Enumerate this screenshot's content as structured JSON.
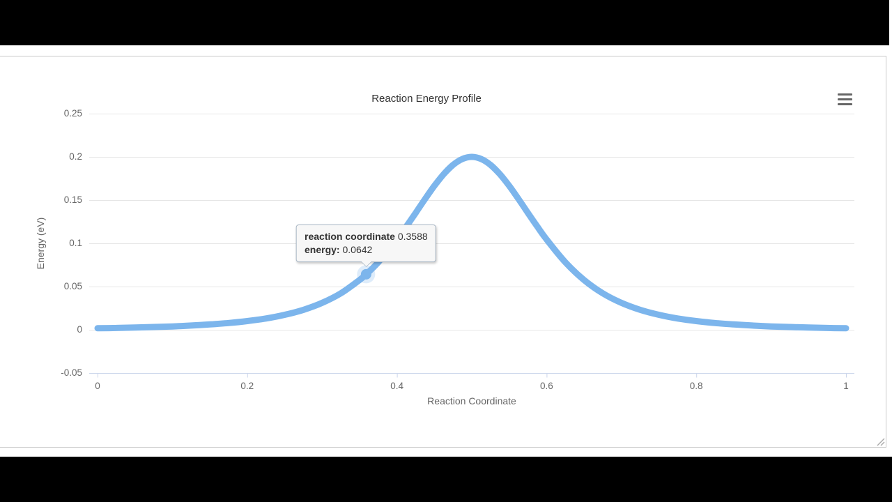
{
  "page": {
    "letterbox_color": "#000000",
    "background": "#ffffff"
  },
  "chart": {
    "title": "Reaction Energy Profile",
    "colors": {
      "series": "#7cb5ec",
      "grid": "#e6e6e6",
      "axis_line": "#ccd6eb",
      "labels": "#666666",
      "title": "#333333",
      "tooltip_bg": "#f7f7f7",
      "tooltip_border": "#a9b7c5",
      "menu_icon": "#666666",
      "letterbox": "#000000",
      "card_border": "#c9c9c9"
    },
    "context_menu_icon": "hamburger-icon",
    "resize_icon": "resize-grip-icon"
  },
  "tooltip": {
    "line1_label": "reaction coordinate",
    "line1_value": "0.3588",
    "line2_label": "energy:",
    "line2_value": "0.0642"
  },
  "chart_data": {
    "type": "line",
    "title": "Reaction Energy Profile",
    "xlabel": "Reaction Coordinate",
    "ylabel": "Energy (eV)",
    "xlim": [
      0,
      1
    ],
    "ylim": [
      -0.05,
      0.25
    ],
    "xticks": [
      0,
      0.2,
      0.4,
      0.6,
      0.8,
      1
    ],
    "xtick_labels": [
      "0",
      "0.2",
      "0.4",
      "0.6",
      "0.8",
      "1"
    ],
    "yticks": [
      -0.05,
      0,
      0.05,
      0.1,
      0.15,
      0.2,
      0.25
    ],
    "ytick_labels": [
      "-0.05",
      "0",
      "0.05",
      "0.1",
      "0.15",
      "0.2",
      "0.25"
    ],
    "grid": "horizontal-only",
    "legend": "none",
    "series": [
      {
        "name": "energy",
        "color": "#7cb5ec",
        "line_width": 9,
        "x": [
          0,
          0.025,
          0.05,
          0.075,
          0.1,
          0.125,
          0.15,
          0.175,
          0.2,
          0.225,
          0.25,
          0.275,
          0.3,
          0.325,
          0.35,
          0.3588,
          0.375,
          0.4,
          0.4125,
          0.425,
          0.4375,
          0.45,
          0.4625,
          0.475,
          0.4875,
          0.5,
          0.5125,
          0.525,
          0.5375,
          0.55,
          0.5625,
          0.575,
          0.5875,
          0.6,
          0.625,
          0.65,
          0.675,
          0.7,
          0.725,
          0.75,
          0.775,
          0.8,
          0.825,
          0.85,
          0.875,
          0.9,
          0.925,
          0.95,
          0.975,
          1
        ],
        "y": [
          0.0018,
          0.0021,
          0.0026,
          0.0032,
          0.0039,
          0.0049,
          0.0062,
          0.0078,
          0.0101,
          0.0131,
          0.0173,
          0.0231,
          0.0311,
          0.0422,
          0.0576,
          0.0642,
          0.0781,
          0.1044,
          0.1194,
          0.1352,
          0.1512,
          0.1665,
          0.18,
          0.1907,
          0.1976,
          0.2,
          0.1976,
          0.1907,
          0.18,
          0.1665,
          0.1512,
          0.1352,
          0.1194,
          0.1044,
          0.0781,
          0.0576,
          0.0422,
          0.0311,
          0.0231,
          0.0173,
          0.0131,
          0.0101,
          0.0078,
          0.0062,
          0.0049,
          0.0039,
          0.0032,
          0.0026,
          0.0021,
          0.0018
        ]
      }
    ],
    "hover_point": {
      "x": 0.3588,
      "y": 0.0642
    }
  }
}
